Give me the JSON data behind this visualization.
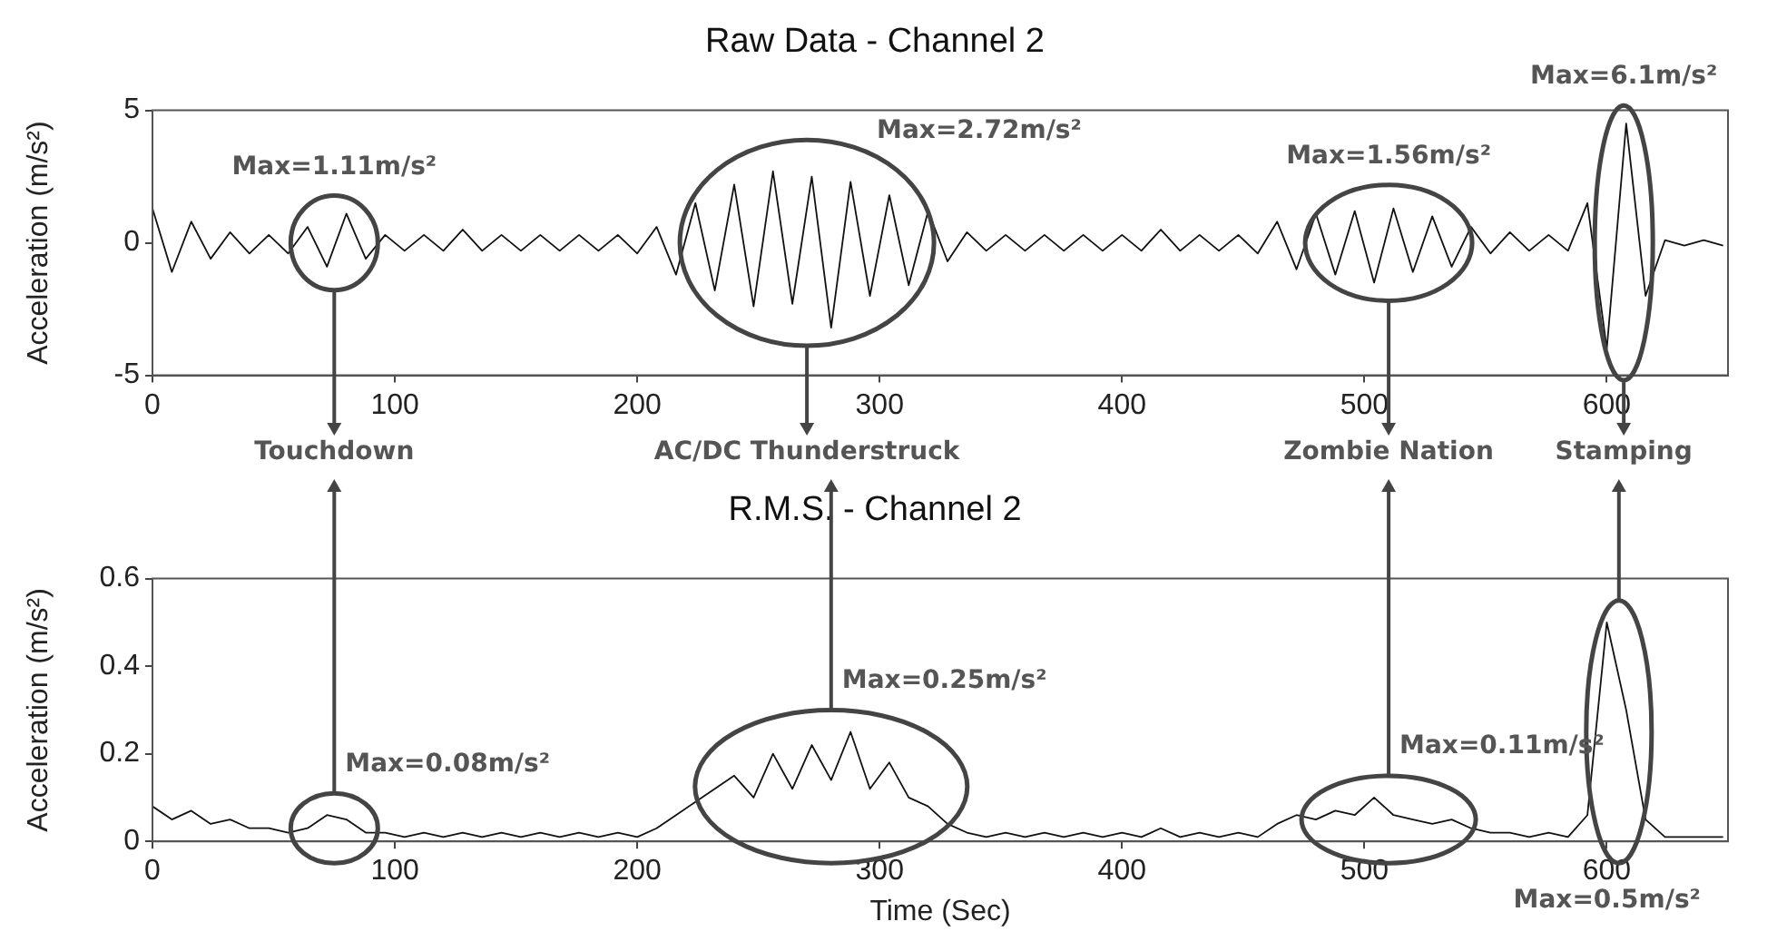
{
  "chart_data": [
    {
      "type": "line",
      "title": "Raw Data - Channel 2",
      "ylabel": "Acceleration (m/s²)",
      "xlim": [
        0,
        650
      ],
      "xticks": [
        0,
        100,
        200,
        300,
        400,
        500,
        600
      ],
      "ylim": [
        -5,
        5
      ],
      "yticks": [
        -5,
        0,
        5
      ],
      "grid": false,
      "legend": false,
      "x": [
        0,
        8,
        16,
        24,
        32,
        40,
        48,
        56,
        64,
        72,
        80,
        88,
        96,
        104,
        112,
        120,
        128,
        136,
        144,
        152,
        160,
        168,
        176,
        184,
        192,
        200,
        208,
        216,
        224,
        232,
        240,
        248,
        256,
        264,
        272,
        280,
        288,
        296,
        304,
        312,
        320,
        328,
        336,
        344,
        352,
        360,
        368,
        376,
        384,
        392,
        400,
        408,
        416,
        424,
        432,
        440,
        448,
        456,
        464,
        472,
        480,
        488,
        496,
        504,
        512,
        520,
        528,
        536,
        544,
        552,
        560,
        568,
        576,
        584,
        592,
        600,
        608,
        616,
        624,
        632,
        640,
        648
      ],
      "series": [
        {
          "color": "#111111",
          "values": [
            1.3,
            -1.1,
            0.8,
            -0.6,
            0.4,
            -0.4,
            0.3,
            -0.4,
            0.6,
            -0.9,
            1.1,
            -0.6,
            0.3,
            -0.3,
            0.3,
            -0.3,
            0.5,
            -0.3,
            0.3,
            -0.3,
            0.3,
            -0.3,
            0.3,
            -0.3,
            0.3,
            -0.4,
            0.6,
            -1.2,
            1.5,
            -1.8,
            2.2,
            -2.4,
            2.7,
            -2.3,
            2.5,
            -3.2,
            2.3,
            -2.0,
            1.8,
            -1.6,
            1.2,
            -0.7,
            0.4,
            -0.3,
            0.3,
            -0.3,
            0.3,
            -0.3,
            0.3,
            -0.3,
            0.3,
            -0.3,
            0.5,
            -0.3,
            0.3,
            -0.3,
            0.3,
            -0.4,
            0.8,
            -1.0,
            1.1,
            -1.2,
            1.2,
            -1.5,
            1.3,
            -1.1,
            1.0,
            -0.9,
            0.6,
            -0.4,
            0.4,
            -0.3,
            0.3,
            -0.3,
            1.5,
            -4.0,
            4.5,
            -2.0,
            0.1,
            -0.1,
            0.1,
            -0.1
          ]
        }
      ],
      "annotations": [
        "Max=1.11m/s²",
        "Max=2.72m/s²",
        "Max=1.56m/s²",
        "Max=6.1m/s²",
        "Touchdown",
        "AC/DC Thunderstruck",
        "Zombie Nation",
        "Stamping"
      ]
    },
    {
      "type": "line",
      "title": "R.M.S. - Channel 2",
      "xlabel": "Time (Sec)",
      "ylabel": "Acceleration (m/s²)",
      "xlim": [
        0,
        650
      ],
      "xticks": [
        0,
        100,
        200,
        300,
        400,
        500,
        600
      ],
      "ylim": [
        0,
        0.6
      ],
      "yticks": [
        0,
        0.2,
        0.4,
        0.6
      ],
      "grid": false,
      "legend": false,
      "x": [
        0,
        8,
        16,
        24,
        32,
        40,
        48,
        56,
        64,
        72,
        80,
        88,
        96,
        104,
        112,
        120,
        128,
        136,
        144,
        152,
        160,
        168,
        176,
        184,
        192,
        200,
        208,
        216,
        224,
        232,
        240,
        248,
        256,
        264,
        272,
        280,
        288,
        296,
        304,
        312,
        320,
        328,
        336,
        344,
        352,
        360,
        368,
        376,
        384,
        392,
        400,
        408,
        416,
        424,
        432,
        440,
        448,
        456,
        464,
        472,
        480,
        488,
        496,
        504,
        512,
        520,
        528,
        536,
        544,
        552,
        560,
        568,
        576,
        584,
        592,
        600,
        608,
        616,
        624,
        632,
        640,
        648
      ],
      "series": [
        {
          "color": "#111111",
          "values": [
            0.08,
            0.05,
            0.07,
            0.04,
            0.05,
            0.03,
            0.03,
            0.02,
            0.03,
            0.06,
            0.05,
            0.02,
            0.02,
            0.01,
            0.02,
            0.01,
            0.02,
            0.01,
            0.02,
            0.01,
            0.02,
            0.01,
            0.02,
            0.01,
            0.02,
            0.01,
            0.03,
            0.06,
            0.09,
            0.12,
            0.15,
            0.1,
            0.2,
            0.12,
            0.22,
            0.14,
            0.25,
            0.12,
            0.18,
            0.1,
            0.08,
            0.04,
            0.02,
            0.01,
            0.02,
            0.01,
            0.02,
            0.01,
            0.02,
            0.01,
            0.02,
            0.01,
            0.03,
            0.01,
            0.02,
            0.01,
            0.02,
            0.01,
            0.04,
            0.06,
            0.05,
            0.07,
            0.06,
            0.1,
            0.06,
            0.05,
            0.04,
            0.05,
            0.03,
            0.02,
            0.02,
            0.01,
            0.02,
            0.01,
            0.06,
            0.5,
            0.3,
            0.05,
            0.01,
            0.01,
            0.01,
            0.01
          ]
        }
      ],
      "annotations": [
        "Max=0.08m/s²",
        "Max=0.25m/s²",
        "Max=0.11m/s²",
        "Max=0.5m/s²"
      ]
    }
  ]
}
